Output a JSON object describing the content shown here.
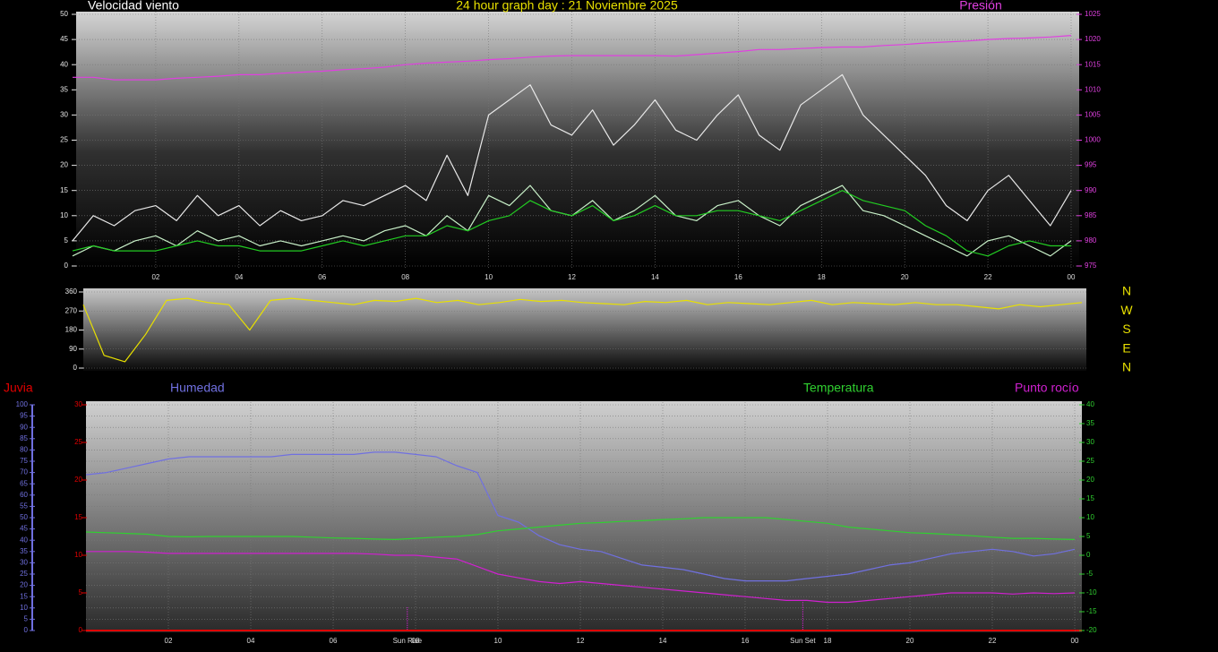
{
  "chart_data": [
    {
      "type": "line",
      "title": "24 hour graph day : 21 Noviembre 2025",
      "ylabel": "Velocidad viento",
      "x": [
        0,
        0.5,
        1,
        1.5,
        2,
        2.5,
        3,
        3.5,
        4,
        4.5,
        5,
        5.5,
        6,
        6.5,
        7,
        7.5,
        8,
        8.5,
        9,
        9.5,
        10,
        10.5,
        11,
        11.5,
        12,
        12.5,
        13,
        13.5,
        14,
        14.5,
        15,
        15.5,
        16,
        16.5,
        17,
        17.5,
        18,
        18.5,
        19,
        19.5,
        20,
        20.5,
        21,
        21.5,
        22,
        22.5,
        23,
        23.5,
        24
      ],
      "xlim": [
        0,
        24
      ],
      "xticks": [
        {
          "value": 2,
          "label": "02"
        },
        {
          "value": 4,
          "label": "04"
        },
        {
          "value": 6,
          "label": "06"
        },
        {
          "value": 8,
          "label": "08"
        },
        {
          "value": 10,
          "label": "10"
        },
        12,
        14,
        16,
        18,
        20,
        22,
        {
          "value": 24,
          "label": "00"
        }
      ],
      "ylim": [
        0,
        50
      ],
      "yticks": [
        0,
        5,
        10,
        15,
        20,
        25,
        30,
        35,
        40,
        45,
        50
      ],
      "y2lim": [
        975,
        1025
      ],
      "y2ticks": [
        975,
        980,
        985,
        990,
        995,
        1000,
        1005,
        1010,
        1015,
        1020,
        1025
      ],
      "grid": true,
      "series": [
        {
          "color": "#e8e8e8",
          "values": [
            5,
            10,
            8,
            11,
            12,
            9,
            14,
            10,
            12,
            8,
            11,
            9,
            10,
            13,
            12,
            14,
            16,
            13,
            22,
            14,
            30,
            33,
            36,
            28,
            26,
            31,
            24,
            28,
            33,
            27,
            25,
            30,
            34,
            26,
            23,
            32,
            35,
            38,
            30,
            26,
            22,
            18,
            12,
            9,
            15,
            18,
            13,
            8,
            15
          ]
        },
        {
          "color": "#c8f0c8",
          "values": [
            2,
            4,
            3,
            5,
            6,
            4,
            7,
            5,
            6,
            4,
            5,
            4,
            5,
            6,
            5,
            7,
            8,
            6,
            10,
            7,
            14,
            12,
            16,
            11,
            10,
            13,
            9,
            11,
            14,
            10,
            9,
            12,
            13,
            10,
            8,
            12,
            14,
            16,
            11,
            10,
            8,
            6,
            4,
            2,
            5,
            6,
            4,
            2,
            5
          ]
        },
        {
          "color": "#22cc22",
          "values": [
            3,
            4,
            3,
            3,
            3,
            4,
            5,
            4,
            4,
            3,
            3,
            3,
            4,
            5,
            4,
            5,
            6,
            6,
            8,
            7,
            9,
            10,
            13,
            11,
            10,
            12,
            9,
            10,
            12,
            10,
            10,
            11,
            11,
            10,
            9,
            11,
            13,
            15,
            13,
            12,
            11,
            8,
            6,
            3,
            2,
            4,
            5,
            4,
            4
          ]
        },
        {
          "name": "Presión",
          "color": "#e040e0",
          "axis": "y2",
          "values": [
            1012.5,
            1012.5,
            1012,
            1012,
            1012,
            1012.3,
            1012.5,
            1012.7,
            1013,
            1013,
            1013.3,
            1013.5,
            1013.7,
            1014,
            1014.2,
            1014.5,
            1015,
            1015.3,
            1015.5,
            1015.7,
            1016,
            1016.2,
            1016.5,
            1016.7,
            1016.8,
            1016.8,
            1016.8,
            1016.8,
            1016.8,
            1016.7,
            1017,
            1017.3,
            1017.6,
            1018,
            1018,
            1018.2,
            1018.4,
            1018.5,
            1018.5,
            1018.8,
            1019,
            1019.3,
            1019.5,
            1019.7,
            1020,
            1020.2,
            1020.3,
            1020.5,
            1020.8
          ]
        }
      ]
    },
    {
      "type": "line",
      "x": [
        0,
        0.5,
        1,
        1.5,
        2,
        2.5,
        3,
        3.5,
        4,
        4.5,
        5,
        5.5,
        6,
        6.5,
        7,
        7.5,
        8,
        8.5,
        9,
        9.5,
        10,
        10.5,
        11,
        11.5,
        12,
        12.5,
        13,
        13.5,
        14,
        14.5,
        15,
        15.5,
        16,
        16.5,
        17,
        17.5,
        18,
        18.5,
        19,
        19.5,
        20,
        20.5,
        21,
        21.5,
        22,
        22.5,
        23,
        23.5,
        24
      ],
      "xlim": [
        0,
        24
      ],
      "ylim": [
        0,
        360
      ],
      "yticks": [
        0,
        90,
        180,
        270,
        360
      ],
      "y2lim": [
        0,
        360
      ],
      "y2ticks": [
        {
          "value": 0,
          "label": "N"
        },
        {
          "value": 90,
          "label": "E"
        },
        {
          "value": 180,
          "label": "S"
        },
        {
          "value": 270,
          "label": "W"
        },
        {
          "value": 360,
          "label": "N"
        }
      ],
      "grid": true,
      "series": [
        {
          "color": "#e8e000",
          "values": [
            300,
            60,
            30,
            160,
            320,
            330,
            310,
            300,
            180,
            320,
            330,
            320,
            310,
            300,
            320,
            315,
            330,
            310,
            320,
            300,
            310,
            325,
            315,
            320,
            310,
            305,
            300,
            315,
            310,
            320,
            300,
            310,
            305,
            300,
            310,
            320,
            300,
            310,
            305,
            300,
            310,
            300,
            300,
            290,
            280,
            300,
            290,
            300,
            310
          ]
        }
      ]
    },
    {
      "type": "line",
      "x": [
        0,
        0.5,
        1,
        1.5,
        2,
        2.5,
        3,
        3.5,
        4,
        4.5,
        5,
        5.5,
        6,
        6.5,
        7,
        7.5,
        8,
        8.5,
        9,
        9.5,
        10,
        10.5,
        11,
        11.5,
        12,
        12.5,
        13,
        13.5,
        14,
        14.5,
        15,
        15.5,
        16,
        16.5,
        17,
        17.5,
        18,
        18.5,
        19,
        19.5,
        20,
        20.5,
        21,
        21.5,
        22,
        22.5,
        23,
        23.5,
        24
      ],
      "xlim": [
        0,
        24
      ],
      "xticks": [
        {
          "value": 2,
          "label": "02"
        },
        {
          "value": 4,
          "label": "04"
        },
        {
          "value": 6,
          "label": "06"
        },
        {
          "value": 8,
          "label": "08"
        },
        {
          "value": 10,
          "label": "10"
        },
        12,
        14,
        16,
        18,
        20,
        22,
        {
          "value": 24,
          "label": "00"
        }
      ],
      "ylim": [
        0,
        100
      ],
      "yticks": [
        0,
        5,
        10,
        15,
        20,
        25,
        30,
        35,
        40,
        45,
        50,
        55,
        60,
        65,
        70,
        75,
        80,
        85,
        90,
        95,
        100
      ],
      "y2lim": [
        -20,
        40
      ],
      "y2ticks": [
        -20,
        -15,
        -10,
        -5,
        0,
        5,
        10,
        15,
        20,
        25,
        30,
        35,
        40
      ],
      "y3lim": [
        0,
        30
      ],
      "y3ticks": [
        0,
        5,
        10,
        15,
        20,
        25,
        30
      ],
      "grid": true,
      "annotations": [
        {
          "label": "Sun Rise",
          "x": 7.8
        },
        {
          "label": "Sun Set",
          "x": 17.4
        }
      ],
      "series": [
        {
          "name": "Humedad",
          "color": "#7070e0",
          "values": [
            69,
            70,
            72,
            74,
            76,
            77,
            77,
            77,
            77,
            77,
            78,
            78,
            78,
            78,
            79,
            79,
            78,
            77,
            73,
            70,
            51,
            48,
            42,
            38,
            36,
            35,
            32,
            29,
            28,
            27,
            25,
            23,
            22,
            22,
            22,
            23,
            24,
            25,
            27,
            29,
            30,
            32,
            34,
            35,
            36,
            35,
            33,
            34,
            36
          ]
        },
        {
          "name": "Temperatura",
          "color": "#30d030",
          "axis": "y2",
          "values": [
            6.2,
            6,
            5.8,
            5.6,
            5,
            4.9,
            5,
            5,
            5,
            5,
            5,
            4.8,
            4.6,
            4.5,
            4.3,
            4.2,
            4.5,
            4.8,
            5,
            5.5,
            6.5,
            7,
            7.5,
            8,
            8.5,
            8.7,
            9,
            9.2,
            9.5,
            9.7,
            10,
            10,
            10,
            10,
            9.5,
            9,
            8.5,
            7.5,
            7,
            6.5,
            6,
            5.8,
            5.5,
            5.2,
            4.8,
            4.5,
            4.5,
            4.3,
            4.2
          ]
        },
        {
          "name": "Punto rocío",
          "color": "#d020d0",
          "axis": "y2",
          "values": [
            1,
            1,
            1,
            0.8,
            0.5,
            0.5,
            0.5,
            0.5,
            0.5,
            0.5,
            0.5,
            0.5,
            0.5,
            0.5,
            0.3,
            0,
            0,
            -0.5,
            -1,
            -3,
            -5,
            -6,
            -7,
            -7.5,
            -7,
            -7.5,
            -8,
            -8.5,
            -9,
            -9.5,
            -10,
            -10.5,
            -11,
            -11.5,
            -12,
            -12,
            -12.5,
            -12.5,
            -12,
            -11.5,
            -11,
            -10.5,
            -10,
            -10,
            -10,
            -10.3,
            -10,
            -10.2,
            -10
          ]
        },
        {
          "name": "Juvia",
          "color": "#e00000",
          "axis": "y3",
          "values": [
            0,
            0,
            0,
            0,
            0,
            0,
            0,
            0,
            0,
            0,
            0,
            0,
            0,
            0,
            0,
            0,
            0,
            0,
            0,
            0,
            0,
            0,
            0,
            0,
            0,
            0,
            0,
            0,
            0,
            0,
            0,
            0,
            0,
            0,
            0,
            0,
            0,
            0,
            0,
            0,
            0,
            0,
            0,
            0,
            0,
            0,
            0,
            0,
            0
          ]
        }
      ]
    }
  ]
}
